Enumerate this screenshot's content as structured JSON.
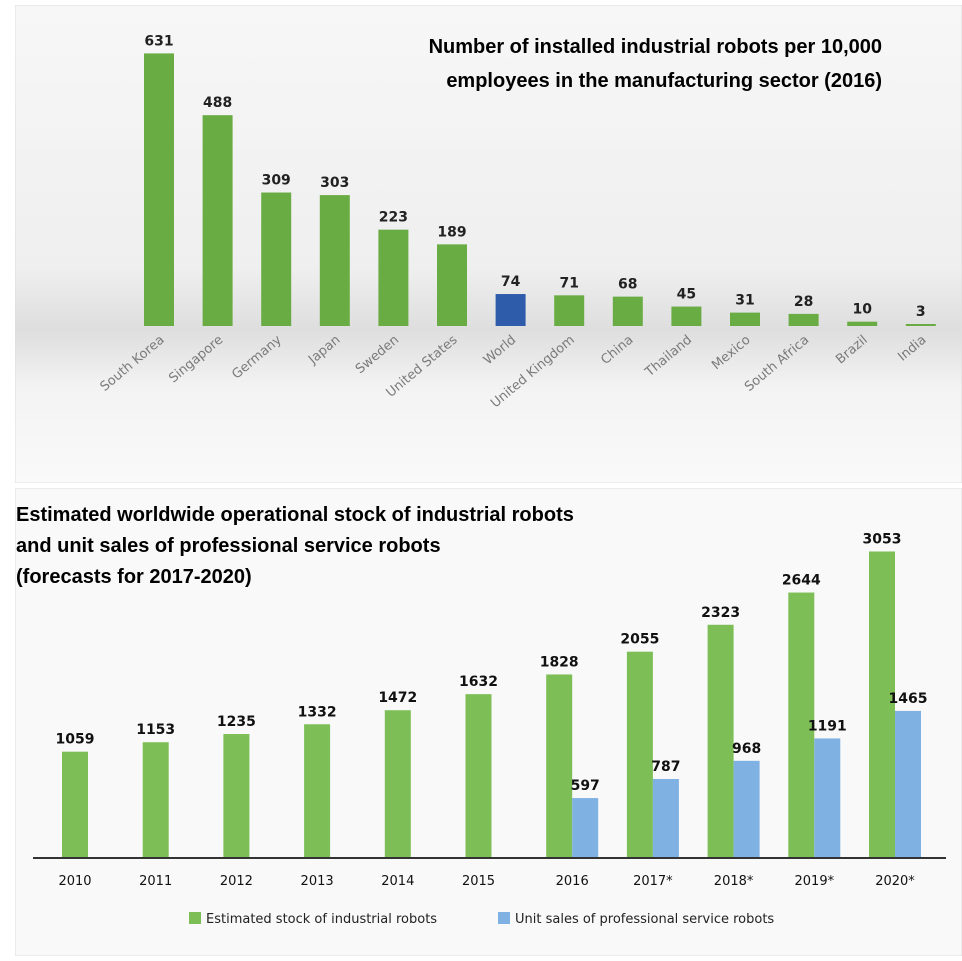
{
  "chart_data": [
    {
      "type": "bar",
      "title_lines": [
        "Number of installed industrial robots per 10,000",
        "employees in the manufacturing sector (2016)"
      ],
      "categories": [
        "South Korea",
        "Singapore",
        "Germany",
        "Japan",
        "Sweden",
        "United States",
        "World",
        "United Kingdom",
        "China",
        "Thailand",
        "Mexico",
        "South Africa",
        "Brazil",
        "India"
      ],
      "values": [
        631,
        488,
        309,
        303,
        223,
        189,
        74,
        71,
        68,
        45,
        31,
        28,
        10,
        3
      ],
      "highlight_category": "World",
      "colors": {
        "bar": "#6aac44",
        "highlight": "#2f5caa"
      },
      "ylim": [
        0,
        650
      ]
    },
    {
      "type": "bar",
      "title_lines": [
        "Estimated worldwide operational stock of industrial robots",
        "and unit sales of professional service robots",
        "(forecasts for 2017-2020)"
      ],
      "categories": [
        "2010",
        "2011",
        "2012",
        "2013",
        "2014",
        "2015",
        "2016",
        "2017*",
        "2018*",
        "2019*",
        "2020*"
      ],
      "series": [
        {
          "name": "Estimated stock of industrial robots",
          "color": "#7dbf56",
          "values": [
            1059,
            1153,
            1235,
            1332,
            1472,
            1632,
            1828,
            2055,
            2323,
            2644,
            3053
          ]
        },
        {
          "name": "Unit sales of professional service robots",
          "color": "#7fb1e3",
          "values": [
            null,
            null,
            null,
            null,
            null,
            null,
            597,
            787,
            968,
            1191,
            1465
          ]
        }
      ],
      "ylim": [
        0,
        3200
      ],
      "legend": "bottom"
    }
  ]
}
